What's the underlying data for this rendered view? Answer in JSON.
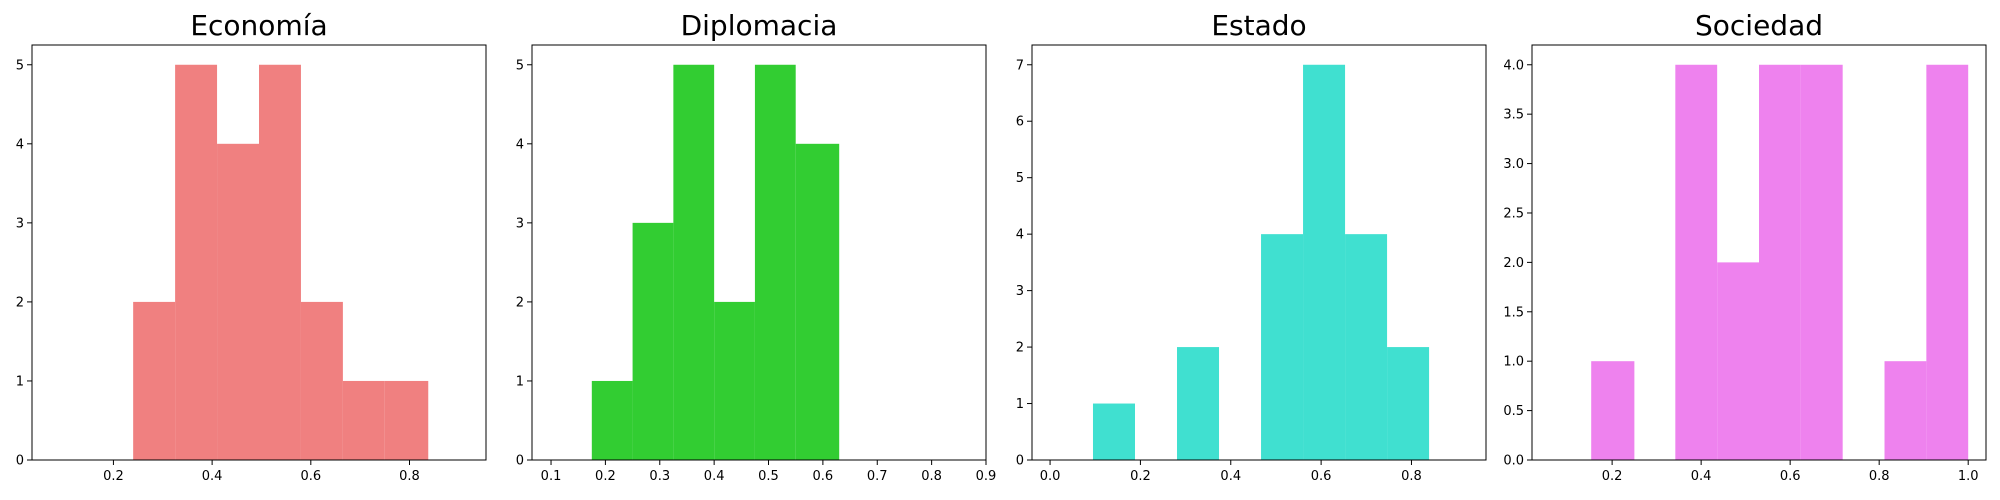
{
  "chart_data": [
    {
      "type": "bar",
      "title": "Economía",
      "color": "#F08080",
      "xlim": [
        0.035,
        0.955
      ],
      "ylim": [
        0,
        5.25
      ],
      "xticks": [
        0.2,
        0.4,
        0.6,
        0.8
      ],
      "xtick_labels": [
        "0.2",
        "0.4",
        "0.6",
        "0.8"
      ],
      "yticks": [
        0,
        1,
        2,
        3,
        4,
        5
      ],
      "ytick_labels": [
        "0",
        "1",
        "2",
        "3",
        "4",
        "5"
      ],
      "bins": [
        [
          0.24,
          0.325
        ],
        [
          0.325,
          0.41
        ],
        [
          0.41,
          0.495
        ],
        [
          0.495,
          0.58
        ],
        [
          0.58,
          0.665
        ],
        [
          0.665,
          0.75
        ],
        [
          0.75,
          0.838
        ]
      ],
      "values": [
        2,
        5,
        4,
        5,
        2,
        1,
        1
      ]
    },
    {
      "type": "bar",
      "title": "Diplomacia",
      "color": "#32CD32",
      "xlim": [
        0.065,
        0.9
      ],
      "ylim": [
        0,
        5.25
      ],
      "xticks": [
        0.1,
        0.2,
        0.3,
        0.4,
        0.5,
        0.6,
        0.7,
        0.8,
        0.9
      ],
      "xtick_labels": [
        "0.1",
        "0.2",
        "0.3",
        "0.4",
        "0.5",
        "0.6",
        "0.7",
        "0.8",
        "0.9"
      ],
      "yticks": [
        0,
        1,
        2,
        3,
        4,
        5
      ],
      "ytick_labels": [
        "0",
        "1",
        "2",
        "3",
        "4",
        "5"
      ],
      "bins": [
        [
          0.175,
          0.25
        ],
        [
          0.25,
          0.325
        ],
        [
          0.325,
          0.4
        ],
        [
          0.4,
          0.475
        ],
        [
          0.475,
          0.55
        ],
        [
          0.55,
          0.63
        ]
      ],
      "values": [
        1,
        3,
        5,
        2,
        5,
        4
      ]
    },
    {
      "type": "bar",
      "title": "Estado",
      "color": "#40E0D0",
      "xlim": [
        -0.04,
        0.965
      ],
      "ylim": [
        0,
        7.35
      ],
      "xticks": [
        0.0,
        0.2,
        0.4,
        0.6,
        0.8
      ],
      "xtick_labels": [
        "0.0",
        "0.2",
        "0.4",
        "0.6",
        "0.8"
      ],
      "yticks": [
        0,
        1,
        2,
        3,
        4,
        5,
        6,
        7
      ],
      "ytick_labels": [
        "0",
        "1",
        "2",
        "3",
        "4",
        "5",
        "6",
        "7"
      ],
      "bins": [
        [
          0.095,
          0.188
        ],
        [
          0.188,
          0.281
        ],
        [
          0.281,
          0.374
        ],
        [
          0.374,
          0.467
        ],
        [
          0.467,
          0.56
        ],
        [
          0.56,
          0.653
        ],
        [
          0.653,
          0.746
        ],
        [
          0.746,
          0.839
        ]
      ],
      "values": [
        1,
        0,
        2,
        0,
        4,
        7,
        4,
        2
      ]
    },
    {
      "type": "bar",
      "title": "Sociedad",
      "color": "#EE82EE",
      "xlim": [
        0.02,
        1.04
      ],
      "ylim": [
        0,
        4.2
      ],
      "xticks": [
        0.2,
        0.4,
        0.6,
        0.8,
        1.0
      ],
      "xtick_labels": [
        "0.2",
        "0.4",
        "0.6",
        "0.8",
        "1.0"
      ],
      "yticks": [
        0,
        0.5,
        1.0,
        1.5,
        2.0,
        2.5,
        3.0,
        3.5,
        4.0
      ],
      "ytick_labels": [
        "0.0",
        "0.5",
        "1.0",
        "1.5",
        "2.0",
        "2.5",
        "3.0",
        "3.5",
        "4.0"
      ],
      "bins": [
        [
          0.153,
          0.25
        ],
        [
          0.25,
          0.342
        ],
        [
          0.342,
          0.436
        ],
        [
          0.436,
          0.53
        ],
        [
          0.53,
          0.624
        ],
        [
          0.624,
          0.718
        ],
        [
          0.718,
          0.812
        ],
        [
          0.812,
          0.906
        ],
        [
          0.906,
          1.0
        ]
      ],
      "values": [
        1,
        0,
        4,
        2,
        4,
        4,
        0,
        1,
        4
      ]
    }
  ]
}
